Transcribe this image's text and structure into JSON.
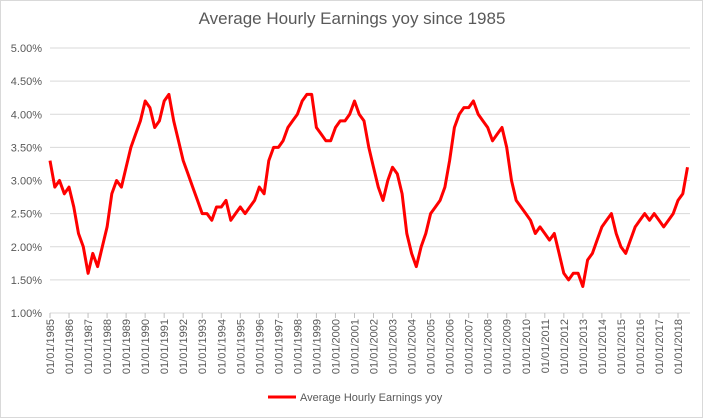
{
  "chart_data": {
    "type": "line",
    "title": "Average Hourly Earnings yoy since 1985",
    "categories": [
      "01/01/1985",
      null,
      null,
      null,
      "01/01/1986",
      null,
      null,
      null,
      "01/01/1987",
      null,
      null,
      null,
      "01/01/1988",
      null,
      null,
      null,
      "01/01/1989",
      null,
      null,
      null,
      "01/01/1990",
      null,
      null,
      null,
      "01/01/1991",
      null,
      null,
      null,
      "01/01/1992",
      null,
      null,
      null,
      "01/01/1993",
      null,
      null,
      null,
      "01/01/1994",
      null,
      null,
      null,
      "01/01/1995",
      null,
      null,
      null,
      "01/01/1996",
      null,
      null,
      null,
      "01/01/1997",
      null,
      null,
      null,
      "01/01/1998",
      null,
      null,
      null,
      "01/01/1999",
      null,
      null,
      null,
      "01/01/2000",
      null,
      null,
      null,
      "01/01/2001",
      null,
      null,
      null,
      "01/01/2002",
      null,
      null,
      null,
      "01/01/2003",
      null,
      null,
      null,
      "01/01/2004",
      null,
      null,
      null,
      "01/01/2005",
      null,
      null,
      null,
      "01/01/2006",
      null,
      null,
      null,
      "01/01/2007",
      null,
      null,
      null,
      "01/01/2008",
      null,
      null,
      null,
      "01/01/2009",
      null,
      null,
      null,
      "01/01/2010",
      null,
      null,
      null,
      "01/01/2011",
      null,
      null,
      null,
      "01/01/2012",
      null,
      null,
      null,
      "01/01/2013",
      null,
      null,
      null,
      "01/01/2014",
      null,
      null,
      null,
      "01/01/2015",
      null,
      null,
      null,
      "01/01/2016",
      null,
      null,
      null,
      "01/01/2017",
      null,
      null,
      null,
      "01/01/2018",
      null,
      null
    ],
    "series": [
      {
        "name": "Average Hourly Earnings yoy",
        "color": "#ff0000",
        "values": [
          3.3,
          2.9,
          3.0,
          2.8,
          2.9,
          2.6,
          2.2,
          2.0,
          1.6,
          1.9,
          1.7,
          2.0,
          2.3,
          2.8,
          3.0,
          2.9,
          3.2,
          3.5,
          3.7,
          3.9,
          4.2,
          4.1,
          3.8,
          3.9,
          4.2,
          4.3,
          3.9,
          3.6,
          3.3,
          3.1,
          2.9,
          2.7,
          2.5,
          2.5,
          2.4,
          2.6,
          2.6,
          2.7,
          2.4,
          2.5,
          2.6,
          2.5,
          2.6,
          2.7,
          2.9,
          2.8,
          3.3,
          3.5,
          3.5,
          3.6,
          3.8,
          3.9,
          4.0,
          4.2,
          4.3,
          4.3,
          3.8,
          3.7,
          3.6,
          3.6,
          3.8,
          3.9,
          3.9,
          4.0,
          4.2,
          4.0,
          3.9,
          3.5,
          3.2,
          2.9,
          2.7,
          3.0,
          3.2,
          3.1,
          2.8,
          2.2,
          1.9,
          1.7,
          2.0,
          2.2,
          2.5,
          2.6,
          2.7,
          2.9,
          3.3,
          3.8,
          4.0,
          4.1,
          4.1,
          4.2,
          4.0,
          3.9,
          3.8,
          3.6,
          3.7,
          3.8,
          3.5,
          3.0,
          2.7,
          2.6,
          2.5,
          2.4,
          2.2,
          2.3,
          2.2,
          2.1,
          2.2,
          1.9,
          1.6,
          1.5,
          1.6,
          1.6,
          1.4,
          1.8,
          1.9,
          2.1,
          2.3,
          2.4,
          2.5,
          2.2,
          2.0,
          1.9,
          2.1,
          2.3,
          2.4,
          2.5,
          2.4,
          2.5,
          2.4,
          2.3,
          2.4,
          2.5,
          2.7,
          2.8,
          3.2
        ]
      }
    ],
    "ylim": [
      1,
      5
    ],
    "yticks": [
      {
        "value": 1,
        "label": "1.00%"
      },
      {
        "value": 1.5,
        "label": "1.50%"
      },
      {
        "value": 2,
        "label": "2.00%"
      },
      {
        "value": 2.5,
        "label": "2.50%"
      },
      {
        "value": 3,
        "label": "3.00%"
      },
      {
        "value": 3.5,
        "label": "3.50%"
      },
      {
        "value": 4,
        "label": "4.00%"
      },
      {
        "value": 4.5,
        "label": "4.50%"
      },
      {
        "value": 5,
        "label": "5.00%"
      }
    ],
    "grid": true,
    "legend": "bottom"
  }
}
